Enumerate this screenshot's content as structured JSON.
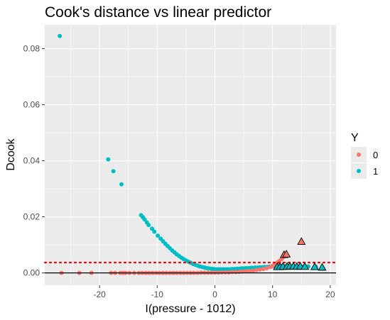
{
  "chart_data": {
    "type": "scatter",
    "title": "Cook's distance vs linear predictor",
    "xlabel": "I(pressure - 1012)",
    "ylabel": "Dcook",
    "xlim": [
      -29.5,
      21
    ],
    "ylim": [
      -0.0044,
      0.0885
    ],
    "x_ticks": [
      -20,
      -10,
      0,
      10,
      20
    ],
    "x_tick_labels": [
      "-20",
      "-10",
      "0",
      "10",
      "20"
    ],
    "y_ticks": [
      0.0,
      0.02,
      0.04,
      0.06,
      0.08
    ],
    "y_tick_labels": [
      "0.00",
      "0.02",
      "0.04",
      "0.06",
      "0.08"
    ],
    "grid": true,
    "background": "#ebebeb",
    "legend": {
      "title": "Y",
      "position": "right",
      "entries": [
        {
          "label": "0",
          "color": "#F8766D"
        },
        {
          "label": "1",
          "color": "#00BFC4"
        }
      ]
    },
    "reference_lines": [
      {
        "type": "hline",
        "y": 0.0037,
        "style": "dotted",
        "color": "#ff0000"
      },
      {
        "type": "hline",
        "y": 0.0,
        "style": "solid",
        "color": "#000000"
      }
    ],
    "series": [
      {
        "name": "1",
        "color": "#00BFC4",
        "points": [
          [
            -26.9,
            0.0845
          ],
          [
            -18.5,
            0.0405
          ],
          [
            -17.6,
            0.0363
          ],
          [
            -16.2,
            0.0316
          ],
          [
            -12.8,
            0.0206
          ],
          [
            -12.5,
            0.0199
          ],
          [
            -12.2,
            0.0191
          ],
          [
            -11.8,
            0.018
          ],
          [
            -11.5,
            0.0171
          ],
          [
            -10.9,
            0.0158
          ],
          [
            -10.5,
            0.0147
          ],
          [
            -9.9,
            0.0133
          ],
          [
            -9.4,
            0.0122
          ],
          [
            -9.0,
            0.0113
          ],
          [
            -8.6,
            0.0104
          ],
          [
            -8.2,
            0.0096
          ],
          [
            -7.8,
            0.0088
          ],
          [
            -7.4,
            0.008
          ],
          [
            -7.0,
            0.0073
          ],
          [
            -6.6,
            0.0066
          ],
          [
            -6.2,
            0.006
          ],
          [
            -5.8,
            0.0054
          ],
          [
            -5.4,
            0.0049
          ],
          [
            -5.0,
            0.0044
          ],
          [
            -4.6,
            0.004
          ],
          [
            -4.2,
            0.0036
          ],
          [
            -3.8,
            0.0032
          ],
          [
            -3.4,
            0.0029
          ],
          [
            -3.0,
            0.0026
          ],
          [
            -2.6,
            0.0023
          ],
          [
            -2.2,
            0.0021
          ],
          [
            -1.8,
            0.0019
          ],
          [
            -1.4,
            0.0017
          ],
          [
            -1.0,
            0.0016
          ],
          [
            -0.6,
            0.0015
          ],
          [
            -0.2,
            0.0014
          ],
          [
            0.2,
            0.0013
          ],
          [
            0.6,
            0.0013
          ],
          [
            1.0,
            0.0013
          ],
          [
            1.4,
            0.0013
          ],
          [
            1.8,
            0.0013
          ],
          [
            2.2,
            0.0013
          ],
          [
            2.6,
            0.0013
          ],
          [
            3.0,
            0.0014
          ],
          [
            3.4,
            0.0014
          ],
          [
            3.8,
            0.0015
          ],
          [
            4.2,
            0.0015
          ],
          [
            4.6,
            0.0016
          ],
          [
            5.0,
            0.0016
          ],
          [
            5.4,
            0.0017
          ],
          [
            5.8,
            0.0017
          ],
          [
            6.2,
            0.0018
          ],
          [
            6.6,
            0.0018
          ],
          [
            7.0,
            0.0019
          ],
          [
            7.4,
            0.0019
          ],
          [
            7.8,
            0.002
          ],
          [
            8.2,
            0.002
          ],
          [
            8.6,
            0.0021
          ],
          [
            9.0,
            0.0021
          ],
          [
            9.4,
            0.0022
          ],
          [
            9.8,
            0.0022
          ],
          [
            10.4,
            0.0023
          ],
          [
            11.0,
            0.0023
          ],
          [
            11.6,
            0.0024
          ],
          [
            12.2,
            0.0024
          ],
          [
            12.8,
            0.0024
          ],
          [
            13.4,
            0.0024
          ],
          [
            14.2,
            0.0024
          ],
          [
            15.4,
            0.0023
          ],
          [
            16.2,
            0.0023
          ],
          [
            17.5,
            0.0022
          ],
          [
            18.6,
            0.002
          ]
        ]
      },
      {
        "name": "0",
        "color": "#F8766D",
        "points": [
          [
            -26.6,
            0.0
          ],
          [
            -23.5,
            0.0
          ],
          [
            -21.4,
            0.0
          ],
          [
            -18.0,
            0.0
          ],
          [
            -17.3,
            0.0
          ],
          [
            -16.4,
            0.0
          ],
          [
            -15.9,
            0.0
          ],
          [
            -15.5,
            0.0
          ],
          [
            -14.8,
            0.0
          ],
          [
            -14.0,
            0.0
          ],
          [
            -13.2,
            0.0
          ],
          [
            -12.6,
            0.0
          ],
          [
            -12.0,
            0.0
          ],
          [
            -11.4,
            0.0
          ],
          [
            -10.8,
            0.0
          ],
          [
            -10.2,
            0.0
          ],
          [
            -9.6,
            0.0
          ],
          [
            -9.0,
            0.0
          ],
          [
            -8.4,
            0.0
          ],
          [
            -7.8,
            0.0
          ],
          [
            -7.2,
            0.0
          ],
          [
            -6.6,
            0.0
          ],
          [
            -6.0,
            0.0
          ],
          [
            -5.4,
            0.0
          ],
          [
            -4.8,
            0.0
          ],
          [
            -4.2,
            0.0
          ],
          [
            -3.6,
            0.0
          ],
          [
            -3.0,
            0.0
          ],
          [
            -2.4,
            0.0001
          ],
          [
            -1.8,
            0.0001
          ],
          [
            -1.2,
            0.0001
          ],
          [
            -0.6,
            0.0001
          ],
          [
            0.0,
            0.0001
          ],
          [
            0.6,
            0.0001
          ],
          [
            1.2,
            0.0002
          ],
          [
            1.8,
            0.0002
          ],
          [
            2.4,
            0.0002
          ],
          [
            3.0,
            0.0003
          ],
          [
            3.6,
            0.0003
          ],
          [
            4.2,
            0.0004
          ],
          [
            4.8,
            0.0005
          ],
          [
            5.4,
            0.0006
          ],
          [
            6.0,
            0.0007
          ],
          [
            6.6,
            0.0008
          ],
          [
            7.2,
            0.001
          ],
          [
            7.8,
            0.0012
          ],
          [
            8.4,
            0.0014
          ],
          [
            9.0,
            0.0017
          ],
          [
            9.6,
            0.0021
          ],
          [
            10.0,
            0.0025
          ],
          [
            10.3,
            0.0029
          ],
          [
            10.6,
            0.0033
          ],
          [
            10.9,
            0.0038
          ],
          [
            11.2,
            0.0043
          ],
          [
            11.6,
            0.005
          ],
          [
            12.0,
            0.0058
          ]
        ]
      }
    ],
    "influential_points": {
      "shape": "triangle",
      "points": [
        {
          "x": 10.8,
          "y": 0.0022,
          "group": "1"
        },
        {
          "x": 11.3,
          "y": 0.0022,
          "group": "1"
        },
        {
          "x": 11.8,
          "y": 0.0023,
          "group": "1"
        },
        {
          "x": 12.0,
          "y": 0.0065,
          "group": "0"
        },
        {
          "x": 12.4,
          "y": 0.0067,
          "group": "0"
        },
        {
          "x": 12.5,
          "y": 0.0023,
          "group": "1"
        },
        {
          "x": 13.0,
          "y": 0.0024,
          "group": "1"
        },
        {
          "x": 13.6,
          "y": 0.0024,
          "group": "1"
        },
        {
          "x": 14.2,
          "y": 0.0023,
          "group": "1"
        },
        {
          "x": 14.8,
          "y": 0.0024,
          "group": "1"
        },
        {
          "x": 15.0,
          "y": 0.0112,
          "group": "0"
        },
        {
          "x": 15.6,
          "y": 0.0023,
          "group": "1"
        },
        {
          "x": 17.3,
          "y": 0.0022,
          "group": "1"
        },
        {
          "x": 18.6,
          "y": 0.002,
          "group": "1"
        }
      ]
    }
  }
}
